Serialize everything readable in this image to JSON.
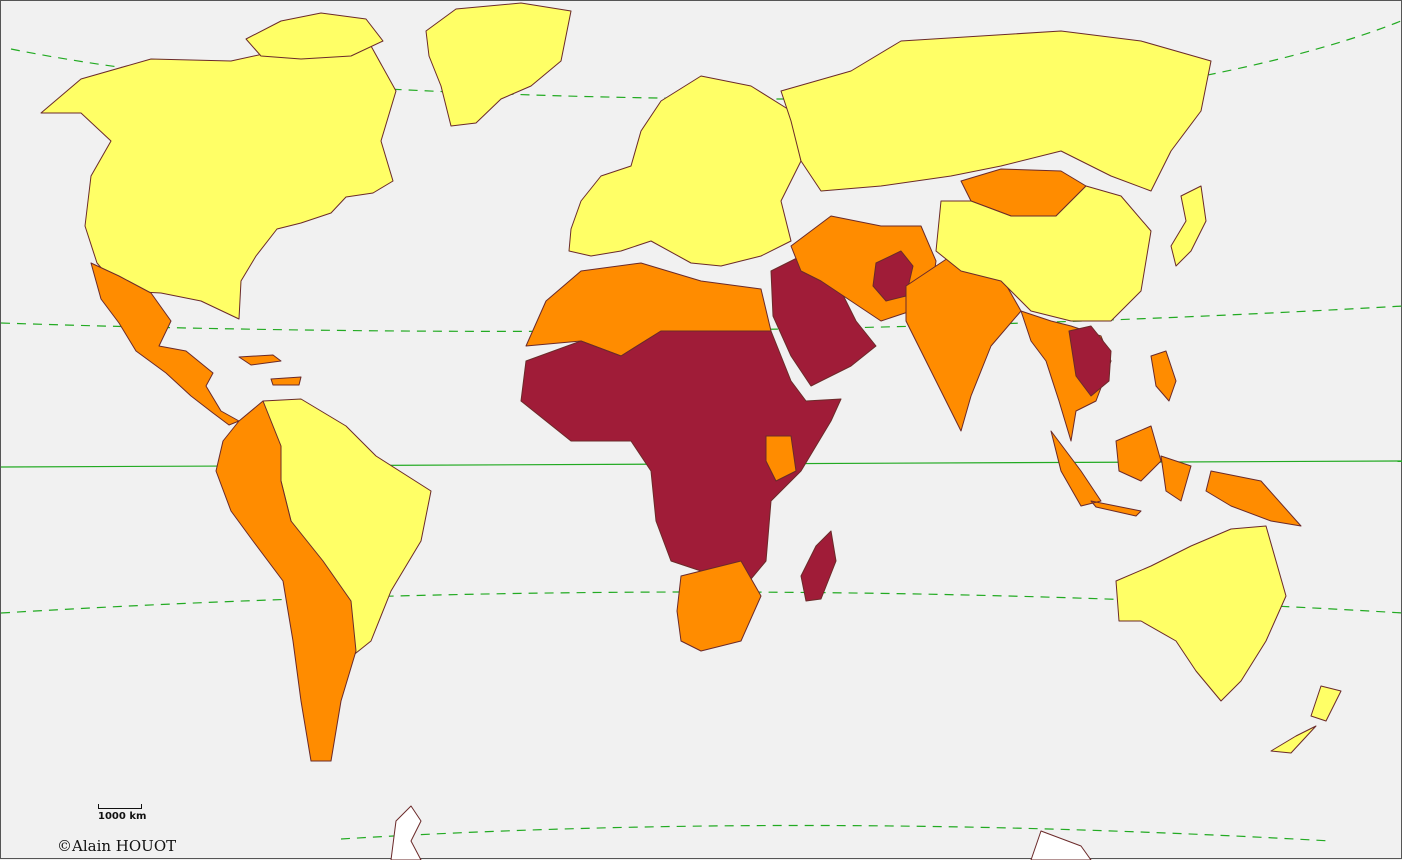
{
  "map": {
    "colors": {
      "background": "#f1f1f1",
      "low": "#ffff66",
      "medium": "#ff8c00",
      "high": "#a01c38",
      "border": "#6b2a2a",
      "tropic_lines": "#22aa22",
      "equator": "#22aa22"
    },
    "regions": [
      {
        "name": "north-america",
        "class": "low"
      },
      {
        "name": "greenland",
        "class": "low"
      },
      {
        "name": "mexico-central-america",
        "class": "medium"
      },
      {
        "name": "caribbean-islands",
        "class": "medium"
      },
      {
        "name": "andean-south-america",
        "class": "medium"
      },
      {
        "name": "brazil-and-east-south-america",
        "class": "low"
      },
      {
        "name": "europe",
        "class": "low"
      },
      {
        "name": "russia",
        "class": "low"
      },
      {
        "name": "north-africa",
        "class": "medium"
      },
      {
        "name": "sub-saharan-africa",
        "class": "high"
      },
      {
        "name": "southern-africa",
        "class": "medium"
      },
      {
        "name": "madagascar",
        "class": "high"
      },
      {
        "name": "arabian-peninsula",
        "class": "high"
      },
      {
        "name": "middle-east-central-asia",
        "class": "medium"
      },
      {
        "name": "afghanistan",
        "class": "high"
      },
      {
        "name": "india",
        "class": "medium"
      },
      {
        "name": "mongolia",
        "class": "medium"
      },
      {
        "name": "china",
        "class": "low"
      },
      {
        "name": "southeast-asia",
        "class": "medium"
      },
      {
        "name": "indochina-high",
        "class": "high"
      },
      {
        "name": "indonesia",
        "class": "medium"
      },
      {
        "name": "philippines",
        "class": "medium"
      },
      {
        "name": "japan",
        "class": "low"
      },
      {
        "name": "australia",
        "class": "low"
      },
      {
        "name": "new-zealand",
        "class": "low"
      },
      {
        "name": "antarctica",
        "class": "none"
      }
    ]
  },
  "scale_bar": {
    "label": "1000 km"
  },
  "copyright": {
    "text": "©Alain HOUOT"
  }
}
